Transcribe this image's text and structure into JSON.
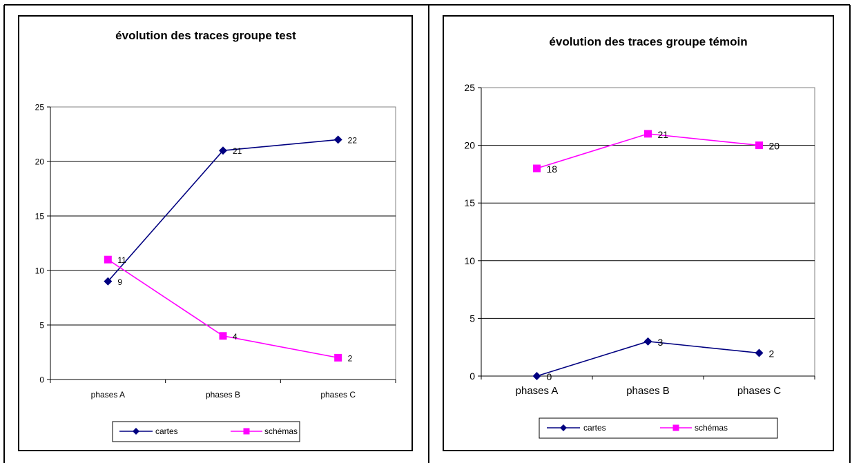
{
  "colors": {
    "cartes": "#000080",
    "schemas": "#ff00ff",
    "grid": "#000000",
    "axis": "#808080",
    "frame": "#000000"
  },
  "legend": {
    "placement": "bottom",
    "items": [
      {
        "label": "cartes",
        "marker": "diamond",
        "color": "#000080"
      },
      {
        "label": "schémas",
        "marker": "square",
        "color": "#ff00ff"
      }
    ]
  },
  "chart_data": [
    {
      "type": "line",
      "title": "évolution des traces groupe test",
      "categories": [
        "phases A",
        "phases B",
        "phases C"
      ],
      "series": [
        {
          "name": "cartes",
          "values": [
            9,
            21,
            22
          ]
        },
        {
          "name": "schémas",
          "values": [
            11,
            4,
            2
          ]
        }
      ],
      "ylim": [
        0,
        25
      ],
      "yticks": [
        0,
        5,
        10,
        15,
        20,
        25
      ],
      "grid": true,
      "data_labels": true,
      "legend": "bottom"
    },
    {
      "type": "line",
      "title": "évolution des traces groupe témoin",
      "categories": [
        "phases A",
        "phases B",
        "phases C"
      ],
      "series": [
        {
          "name": "cartes",
          "values": [
            0,
            3,
            2
          ]
        },
        {
          "name": "schémas",
          "values": [
            18,
            21,
            20
          ]
        }
      ],
      "ylim": [
        0,
        25
      ],
      "yticks": [
        0,
        5,
        10,
        15,
        20,
        25
      ],
      "grid": true,
      "data_labels": true,
      "legend": "bottom"
    }
  ]
}
